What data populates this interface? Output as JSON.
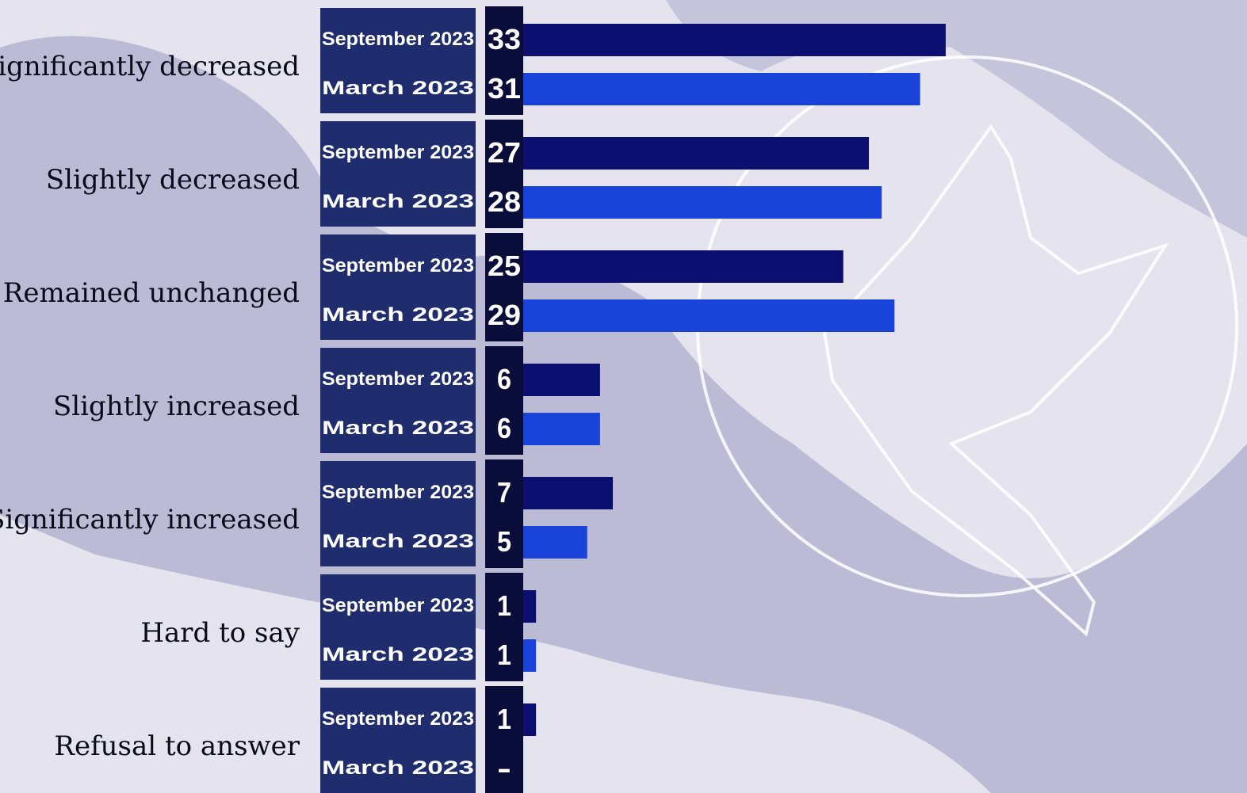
{
  "chart_data": {
    "type": "bar",
    "orientation": "horizontal",
    "categories": [
      "Significantly decreased",
      "Slightly decreased",
      "Remained unchanged",
      "Slightly increased",
      "Significantly increased",
      "Hard to say",
      "Refusal to answer"
    ],
    "series": [
      {
        "name": "September 2023",
        "color": "#0b0f6f",
        "values": [
          33,
          27,
          25,
          6,
          7,
          1,
          1
        ]
      },
      {
        "name": "March 2023",
        "color": "#1a44d9",
        "values": [
          31,
          28,
          29,
          6,
          5,
          1,
          null
        ],
        "value_labels": [
          "31",
          "28",
          "29",
          "6",
          "5",
          "1",
          "-"
        ]
      }
    ]
  }
}
